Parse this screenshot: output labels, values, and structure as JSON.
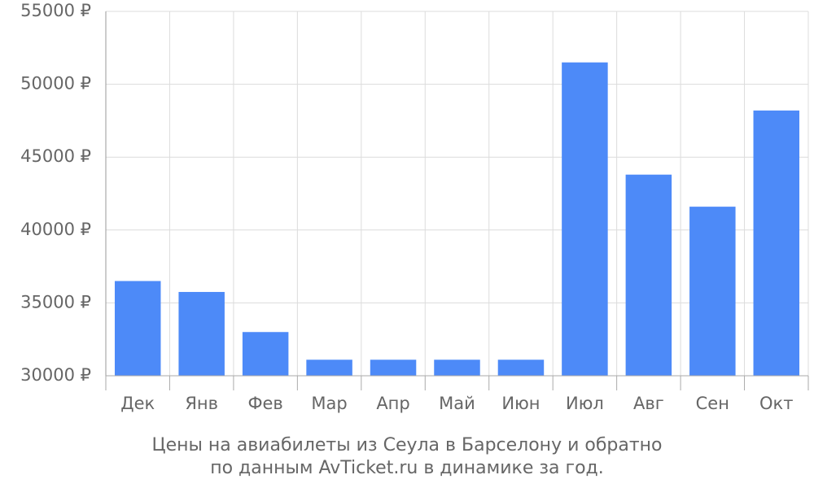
{
  "chart_data": {
    "type": "bar",
    "title": [
      "Цены на авиабилеты из Сеула в Барселону и обратно",
      "по данным AvTicket.ru в динамике за год."
    ],
    "categories": [
      "Дек",
      "Янв",
      "Фев",
      "Мар",
      "Апр",
      "Май",
      "Июн",
      "Июл",
      "Авг",
      "Сен",
      "Окт"
    ],
    "values": [
      36500,
      35750,
      33000,
      31100,
      31100,
      31100,
      31100,
      51500,
      43800,
      41600,
      48200
    ],
    "color": "#4d8af8",
    "ylim": [
      30000,
      55000
    ],
    "yticks": [
      {
        "value": 30000,
        "label": "30000 ₽"
      },
      {
        "value": 35000,
        "label": "35000 ₽"
      },
      {
        "value": 40000,
        "label": "40000 ₽"
      },
      {
        "value": 45000,
        "label": "45000 ₽"
      },
      {
        "value": 50000,
        "label": "50000 ₽"
      },
      {
        "value": 55000,
        "label": "55000 ₽"
      }
    ],
    "grid": true
  }
}
